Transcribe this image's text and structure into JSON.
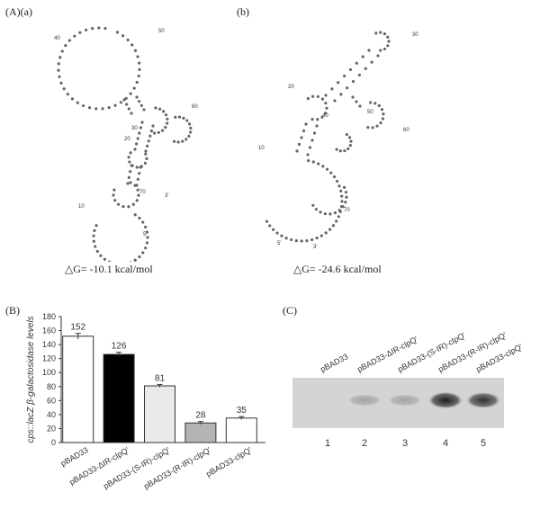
{
  "panel_a": {
    "label_A": "(A)",
    "label_a": "(a)",
    "label_b": "(b)",
    "dg_a": "△G= -10.1 kcal/mol",
    "dg_b": "△G= -24.6 kcal/mol",
    "structure_a_positions": [
      "10",
      "20",
      "30",
      "40",
      "50",
      "60",
      "70",
      "3'",
      "5'"
    ],
    "structure_b_positions": [
      "10",
      "20",
      "30",
      "40",
      "50",
      "60",
      "70",
      "5'",
      "3'"
    ]
  },
  "panel_b": {
    "label": "(B)",
    "chart_data": {
      "type": "bar",
      "categories": [
        "pBAD33",
        "pBAD33-ΔIR-clpQ'",
        "pBAD33-(S-IR)-clpQ'",
        "pBAD33-(R-IR)-clpQ'",
        "pBAD33-clpQ'"
      ],
      "values": [
        152,
        126,
        81,
        28,
        35
      ],
      "value_labels": [
        "152",
        "126",
        "81",
        "28",
        "35"
      ],
      "errors": [
        4,
        3,
        2,
        2,
        2
      ],
      "ylabel": "cps::lacZ β-galactosidase levels",
      "ylim": [
        0,
        180
      ],
      "yticks": [
        "0",
        "20",
        "40",
        "60",
        "80",
        "100",
        "120",
        "140",
        "160",
        "180"
      ],
      "bar_fills": [
        "#ffffff",
        "#000000",
        "#ececec",
        "#b4b4b4",
        "#ffffff"
      ]
    }
  },
  "panel_c": {
    "label": "(C)",
    "lanes": [
      {
        "name": "pBAD33",
        "number": "1",
        "intensity": 0.0
      },
      {
        "name": "pBAD33-ΔIR-clpQ'",
        "number": "2",
        "intensity": 0.25
      },
      {
        "name": "pBAD33-(S-IR)-clpQ'",
        "number": "3",
        "intensity": 0.25
      },
      {
        "name": "pBAD33-(R-IR)-clpQ'",
        "number": "4",
        "intensity": 0.95
      },
      {
        "name": "pBAD33-clpQ'",
        "number": "5",
        "intensity": 0.85
      }
    ]
  }
}
